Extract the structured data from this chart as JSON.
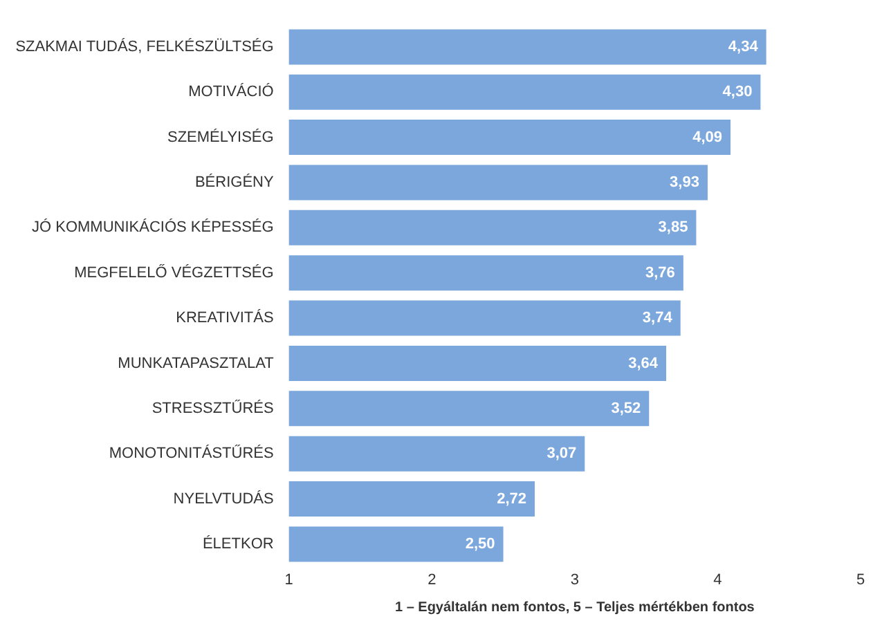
{
  "chart_data": {
    "type": "bar",
    "orientation": "horizontal",
    "xlabel": "1 – Egyáltalán nem fontos, 5 – Teljes mértékben fontos",
    "categories": [
      "SZAKMAI TUDÁS, FELKÉSZÜLTSÉG",
      "MOTIVÁCIÓ",
      "SZEMÉLYISÉG",
      "BÉRIGÉNY",
      "JÓ KOMMUNIKÁCIÓS KÉPESSÉG",
      "MEGFELELŐ VÉGZETTSÉG",
      "KREATIVITÁS",
      "MUNKATAPASZTALAT",
      "STRESSZTŰRÉS",
      "MONOTONITÁSTŰRÉS",
      "NYELVTUDÁS",
      "ÉLETKOR"
    ],
    "values": [
      4.34,
      4.3,
      4.09,
      3.93,
      3.85,
      3.76,
      3.74,
      3.64,
      3.52,
      3.07,
      2.72,
      2.5
    ],
    "value_labels": [
      "4,34",
      "4,30",
      "4,09",
      "3,93",
      "3,85",
      "3,76",
      "3,74",
      "3,64",
      "3,52",
      "3,07",
      "2,72",
      "2,50"
    ],
    "color": "#7ba7dc",
    "xlim": [
      1,
      5
    ],
    "xticks": [
      1,
      2,
      3,
      4,
      5
    ],
    "grid": false,
    "legend": false
  }
}
